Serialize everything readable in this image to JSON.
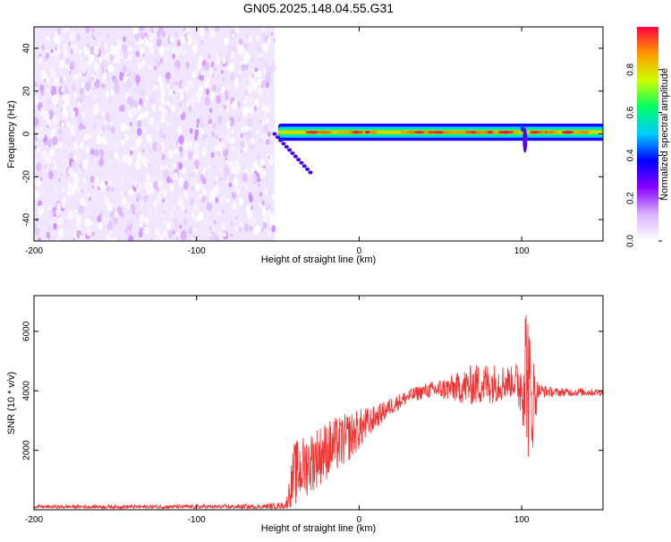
{
  "title": "GN05.2025.148.04.55.G31",
  "colors": {
    "snr_line": "#ee3333",
    "noise_purple": "#8a33ee",
    "axis": "#000000",
    "colormap": [
      "#ffffff",
      "#d9b3ff",
      "#8800ff",
      "#0000ff",
      "#00ccff",
      "#00ff66",
      "#ccff00",
      "#ff9900",
      "#ff0044"
    ]
  },
  "chart_data": [
    {
      "type": "heatmap",
      "xlabel": "Height of straight line (km)",
      "ylabel": "Frequency (Hz)",
      "xlim": [
        -200,
        150
      ],
      "ylim": [
        -50,
        50
      ],
      "xticks": [
        -200,
        -100,
        0,
        100
      ],
      "yticks": [
        -40,
        -20,
        0,
        20,
        40
      ],
      "colorbar": {
        "label": "Normalized spectral amplitude",
        "range": [
          0,
          1
        ],
        "ticks": [
          0.0,
          0.2,
          0.4,
          0.6,
          0.8
        ]
      },
      "features": {
        "noise_region_x": [
          -200,
          -52
        ],
        "signal_band_x": [
          -52,
          150
        ],
        "signal_frequency_hz": 0.8,
        "signal_band_halfwidth_hz": 4,
        "trailing_streak": {
          "x": [
            -52,
            -30
          ],
          "freq": [
            0,
            -18
          ]
        },
        "spike_at_x": 102
      },
      "grid": false
    },
    {
      "type": "line",
      "xlabel": "Height of straight line (km)",
      "ylabel": "SNR (10 * v/v)",
      "xlim": [
        -200,
        150
      ],
      "ylim": [
        0,
        7200
      ],
      "xticks": [
        -200,
        -100,
        0,
        100
      ],
      "yticks": [
        2000,
        4000,
        6000
      ],
      "grid": false,
      "envelope": {
        "x": [
          -200,
          -60,
          -45,
          -40,
          -20,
          -10,
          0,
          10,
          20,
          30,
          40,
          50,
          60,
          70,
          80,
          90,
          95,
          100,
          103,
          105,
          110,
          120,
          150
        ],
        "mean": [
          100,
          100,
          150,
          1200,
          2000,
          2300,
          2700,
          3100,
          3500,
          3800,
          4000,
          4050,
          4100,
          4200,
          4250,
          4300,
          4300,
          4200,
          5000,
          3500,
          4000,
          3950,
          3950
        ],
        "amp": [
          60,
          80,
          120,
          1100,
          1000,
          900,
          700,
          400,
          300,
          250,
          250,
          350,
          500,
          700,
          700,
          600,
          500,
          1200,
          2800,
          2500,
          250,
          150,
          120
        ]
      }
    }
  ]
}
